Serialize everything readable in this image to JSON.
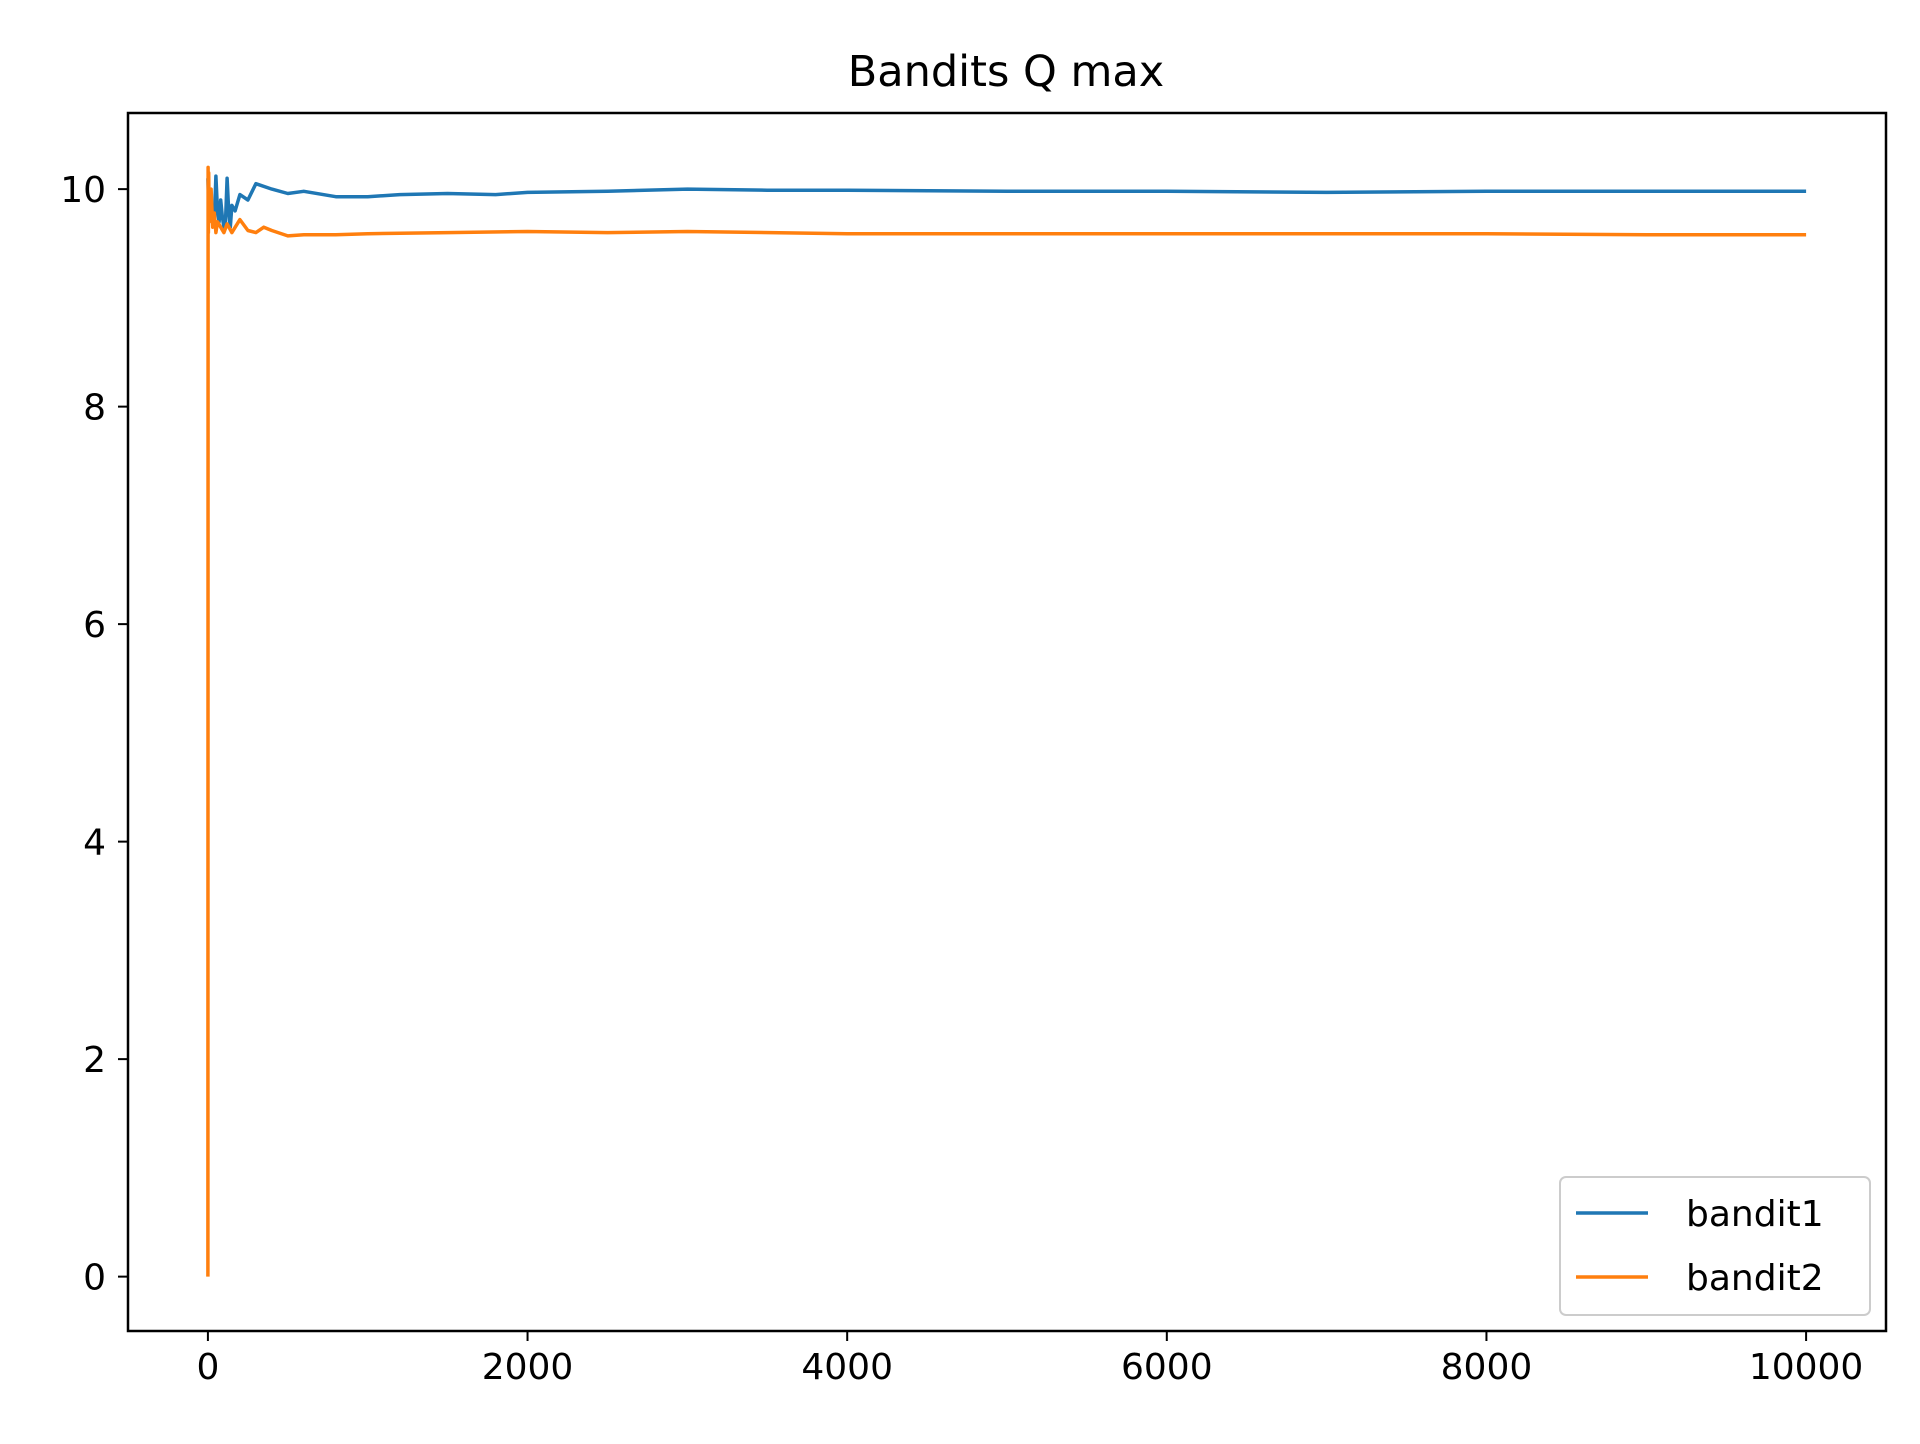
{
  "chart_data": {
    "type": "line",
    "title": "Bandits Q max",
    "xlabel": "",
    "ylabel": "",
    "xlim": [
      -500,
      10500
    ],
    "ylim": [
      -0.5,
      10.7
    ],
    "xticks": [
      0,
      2000,
      4000,
      6000,
      8000,
      10000
    ],
    "xtick_labels": [
      "0",
      "2000",
      "4000",
      "6000",
      "8000",
      "10000"
    ],
    "yticks": [
      0,
      2,
      4,
      6,
      8,
      10
    ],
    "ytick_labels": [
      "0",
      "2",
      "4",
      "6",
      "8",
      "10"
    ],
    "grid": false,
    "legend_position": "lower right",
    "series": [
      {
        "name": "bandit1",
        "color": "#1f77b4",
        "x": [
          0,
          5,
          10,
          20,
          30,
          40,
          50,
          60,
          70,
          80,
          90,
          100,
          110,
          120,
          130,
          140,
          150,
          170,
          200,
          250,
          300,
          400,
          500,
          600,
          800,
          1000,
          1200,
          1500,
          1800,
          2000,
          2500,
          3000,
          3500,
          4000,
          5000,
          6000,
          7000,
          8000,
          9000,
          10000
        ],
        "y": [
          10.1,
          9.85,
          9.95,
          9.75,
          9.85,
          9.7,
          10.12,
          9.8,
          9.7,
          9.9,
          9.75,
          9.65,
          9.7,
          10.1,
          9.8,
          9.65,
          9.85,
          9.8,
          9.95,
          9.9,
          10.05,
          10.0,
          9.96,
          9.98,
          9.93,
          9.93,
          9.95,
          9.96,
          9.95,
          9.97,
          9.98,
          10.0,
          9.99,
          9.99,
          9.98,
          9.98,
          9.97,
          9.98,
          9.98,
          9.98
        ]
      },
      {
        "name": "bandit2",
        "color": "#ff7f0e",
        "x": [
          0,
          1,
          3,
          5,
          8,
          10,
          15,
          20,
          30,
          40,
          50,
          60,
          80,
          100,
          120,
          150,
          200,
          250,
          300,
          350,
          400,
          500,
          600,
          800,
          1000,
          1500,
          2000,
          2500,
          3000,
          4000,
          5000,
          6000,
          7000,
          8000,
          9000,
          10000
        ],
        "y": [
          0.0,
          10.2,
          9.6,
          10.15,
          9.7,
          9.85,
          9.75,
          10.0,
          9.65,
          9.78,
          9.6,
          9.7,
          9.65,
          9.6,
          9.68,
          9.6,
          9.72,
          9.62,
          9.6,
          9.65,
          9.62,
          9.57,
          9.58,
          9.58,
          9.59,
          9.6,
          9.61,
          9.6,
          9.61,
          9.59,
          9.59,
          9.59,
          9.59,
          9.59,
          9.58,
          9.58
        ]
      }
    ]
  }
}
